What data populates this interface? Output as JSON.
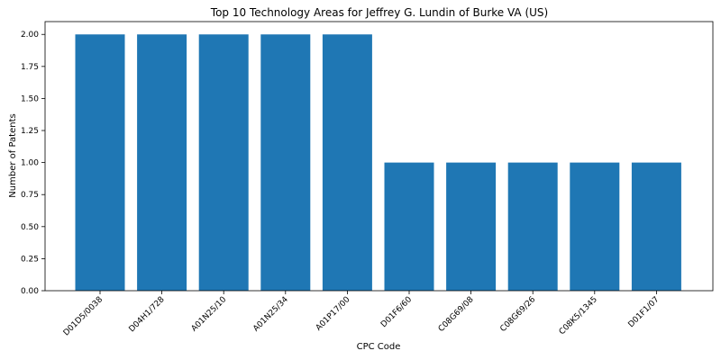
{
  "chart_data": {
    "type": "bar",
    "title": "Top 10 Technology Areas for Jeffrey G. Lundin of Burke VA (US)",
    "xlabel": "CPC Code",
    "ylabel": "Number of Patents",
    "categories": [
      "D01D5/0038",
      "D04H1/728",
      "A01N25/10",
      "A01N25/34",
      "A01P17/00",
      "D01F6/60",
      "C08G69/08",
      "C08G69/26",
      "C08K5/1345",
      "D01F1/07"
    ],
    "values": [
      2,
      2,
      2,
      2,
      2,
      1,
      1,
      1,
      1,
      1
    ],
    "ylim": [
      0,
      2.1
    ],
    "yticks": [
      "0.00",
      "0.25",
      "0.50",
      "0.75",
      "1.00",
      "1.25",
      "1.50",
      "1.75",
      "2.00"
    ],
    "bar_color": "#1f77b4",
    "grid": false,
    "legend": "none"
  }
}
